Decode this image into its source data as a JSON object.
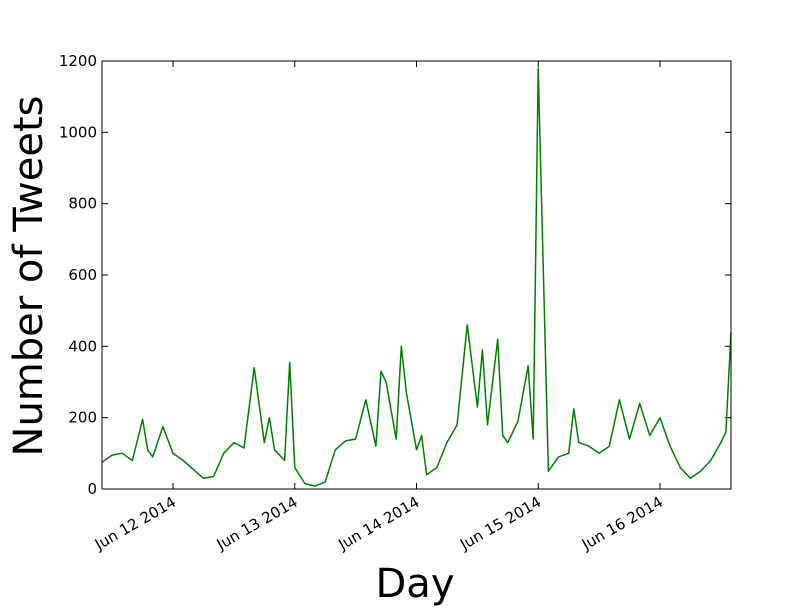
{
  "chart_data": {
    "type": "line",
    "title": "",
    "xlabel": "Day",
    "ylabel": "Number of Tweets",
    "ylim": [
      0,
      1200
    ],
    "yticks": [
      "0",
      "200",
      "400",
      "600",
      "800",
      "1000",
      "1200"
    ],
    "xlim": [
      "2014-06-11 10:00",
      "2014-06-16 14:00"
    ],
    "xticks": [
      "Jun 12 2014",
      "Jun 13 2014",
      "Jun 14 2014",
      "Jun 15 2014",
      "Jun 16 2014"
    ],
    "grid": false,
    "legend": "none",
    "series": [
      {
        "color": "#008000",
        "x": [
          "2014-06-11 10:00",
          "2014-06-11 12:00",
          "2014-06-11 14:00",
          "2014-06-11 16:00",
          "2014-06-11 18:00",
          "2014-06-11 19:00",
          "2014-06-11 20:00",
          "2014-06-11 22:00",
          "2014-06-12 00:00",
          "2014-06-12 02:00",
          "2014-06-12 04:00",
          "2014-06-12 06:00",
          "2014-06-12 08:00",
          "2014-06-12 10:00",
          "2014-06-12 12:00",
          "2014-06-12 14:00",
          "2014-06-12 16:00",
          "2014-06-12 18:00",
          "2014-06-12 19:00",
          "2014-06-12 20:00",
          "2014-06-12 22:00",
          "2014-06-12 23:00",
          "2014-06-13 00:00",
          "2014-06-13 02:00",
          "2014-06-13 04:00",
          "2014-06-13 06:00",
          "2014-06-13 08:00",
          "2014-06-13 10:00",
          "2014-06-13 12:00",
          "2014-06-13 14:00",
          "2014-06-13 16:00",
          "2014-06-13 17:00",
          "2014-06-13 18:00",
          "2014-06-13 20:00",
          "2014-06-13 21:00",
          "2014-06-13 22:00",
          "2014-06-14 00:00",
          "2014-06-14 01:00",
          "2014-06-14 02:00",
          "2014-06-14 04:00",
          "2014-06-14 06:00",
          "2014-06-14 08:00",
          "2014-06-14 10:00",
          "2014-06-14 12:00",
          "2014-06-14 13:00",
          "2014-06-14 14:00",
          "2014-06-14 16:00",
          "2014-06-14 17:00",
          "2014-06-14 18:00",
          "2014-06-14 20:00",
          "2014-06-14 22:00",
          "2014-06-14 23:00",
          "2014-06-15 00:00",
          "2014-06-15 02:00",
          "2014-06-15 04:00",
          "2014-06-15 06:00",
          "2014-06-15 07:00",
          "2014-06-15 08:00",
          "2014-06-15 10:00",
          "2014-06-15 12:00",
          "2014-06-15 14:00",
          "2014-06-15 16:00",
          "2014-06-15 18:00",
          "2014-06-15 20:00",
          "2014-06-15 22:00",
          "2014-06-16 00:00",
          "2014-06-16 02:00",
          "2014-06-16 04:00",
          "2014-06-16 06:00",
          "2014-06-16 08:00",
          "2014-06-16 10:00",
          "2014-06-16 12:00",
          "2014-06-16 13:00",
          "2014-06-16 14:00"
        ],
        "y": [
          75,
          95,
          100,
          80,
          195,
          110,
          90,
          175,
          100,
          80,
          55,
          30,
          35,
          100,
          130,
          115,
          340,
          130,
          200,
          110,
          80,
          355,
          60,
          15,
          8,
          20,
          110,
          135,
          140,
          250,
          120,
          330,
          300,
          140,
          400,
          270,
          110,
          150,
          40,
          60,
          130,
          180,
          460,
          230,
          390,
          180,
          420,
          150,
          130,
          190,
          345,
          140,
          1180,
          50,
          90,
          100,
          225,
          130,
          120,
          100,
          120,
          250,
          140,
          240,
          150,
          200,
          120,
          60,
          30,
          50,
          80,
          130,
          160,
          440
        ]
      }
    ]
  }
}
